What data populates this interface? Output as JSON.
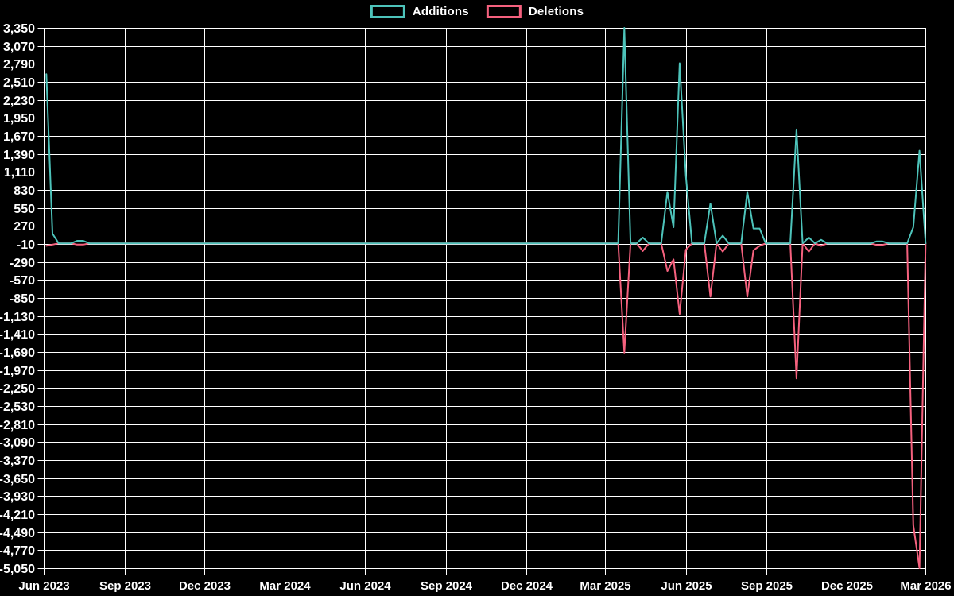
{
  "chart_data": {
    "type": "line",
    "title": "",
    "grid": true,
    "legend_position": "top-center",
    "background_color": "#000000",
    "grid_color": "#ffffff",
    "text_color": "#ffffff",
    "x_axis": {
      "start": "2023-06-01",
      "end": "2026-03-01",
      "tick_labels": [
        "Jun 2023",
        "Sep 2023",
        "Dec 2023",
        "Mar 2024",
        "Jun 2024",
        "Sep 2024",
        "Dec 2024",
        "Mar 2025",
        "Jun 2025",
        "Sep 2025",
        "Dec 2025",
        "Mar 2026"
      ],
      "tick_dates": [
        "2023-06-01",
        "2023-09-01",
        "2023-12-01",
        "2024-03-01",
        "2024-06-01",
        "2024-09-01",
        "2024-12-01",
        "2025-03-01",
        "2025-06-01",
        "2025-09-01",
        "2025-12-01",
        "2026-03-01"
      ]
    },
    "y_axis": {
      "min": -5050,
      "max": 3350,
      "step": 280,
      "tick_labels": [
        "3,350",
        "3,070",
        "2,790",
        "2,510",
        "2,230",
        "1,950",
        "1,670",
        "1,390",
        "1,110",
        "830",
        "550",
        "270",
        "-10",
        "-290",
        "-570",
        "-850",
        "-1,130",
        "-1,410",
        "-1,690",
        "-1,970",
        "-2,250",
        "-2,530",
        "-2,810",
        "-3,090",
        "-3,370",
        "-3,650",
        "-3,930",
        "-4,210",
        "-4,490",
        "-4,770",
        "-5,050"
      ]
    },
    "week_start": "2023-06-04",
    "week_end": "2026-03-01",
    "unlisted_weeks_value": 0,
    "series": [
      {
        "name": "Additions",
        "color": "#4DC3BA",
        "points": [
          [
            "2023-06-04",
            2630
          ],
          [
            "2023-06-11",
            150
          ],
          [
            "2023-07-09",
            40
          ],
          [
            "2023-07-16",
            40
          ],
          [
            "2025-03-23",
            3350
          ],
          [
            "2025-04-13",
            90
          ],
          [
            "2025-05-11",
            800
          ],
          [
            "2025-05-18",
            250
          ],
          [
            "2025-05-25",
            2800
          ],
          [
            "2025-06-01",
            1050
          ],
          [
            "2025-06-29",
            620
          ],
          [
            "2025-07-13",
            120
          ],
          [
            "2025-08-10",
            800
          ],
          [
            "2025-08-17",
            230
          ],
          [
            "2025-08-24",
            230
          ],
          [
            "2025-10-05",
            1770
          ],
          [
            "2025-10-19",
            90
          ],
          [
            "2025-11-02",
            55
          ],
          [
            "2026-01-04",
            30
          ],
          [
            "2026-01-11",
            30
          ],
          [
            "2026-02-15",
            250
          ],
          [
            "2026-02-22",
            1440
          ]
        ]
      },
      {
        "name": "Deletions",
        "color": "#F5617E",
        "points": [
          [
            "2023-06-04",
            -40
          ],
          [
            "2023-06-11",
            -20
          ],
          [
            "2023-07-09",
            -20
          ],
          [
            "2023-07-16",
            -20
          ],
          [
            "2025-03-23",
            -1700
          ],
          [
            "2025-04-13",
            -120
          ],
          [
            "2025-05-11",
            -430
          ],
          [
            "2025-05-18",
            -250
          ],
          [
            "2025-05-25",
            -1100
          ],
          [
            "2025-06-01",
            -100
          ],
          [
            "2025-06-29",
            -830
          ],
          [
            "2025-07-13",
            -130
          ],
          [
            "2025-08-10",
            -830
          ],
          [
            "2025-08-17",
            -110
          ],
          [
            "2025-08-24",
            -40
          ],
          [
            "2025-10-05",
            -2100
          ],
          [
            "2025-10-19",
            -130
          ],
          [
            "2025-11-02",
            -40
          ],
          [
            "2026-01-04",
            -25
          ],
          [
            "2026-01-11",
            -25
          ],
          [
            "2026-02-15",
            -4380
          ],
          [
            "2026-02-22",
            -5050
          ]
        ]
      }
    ]
  }
}
